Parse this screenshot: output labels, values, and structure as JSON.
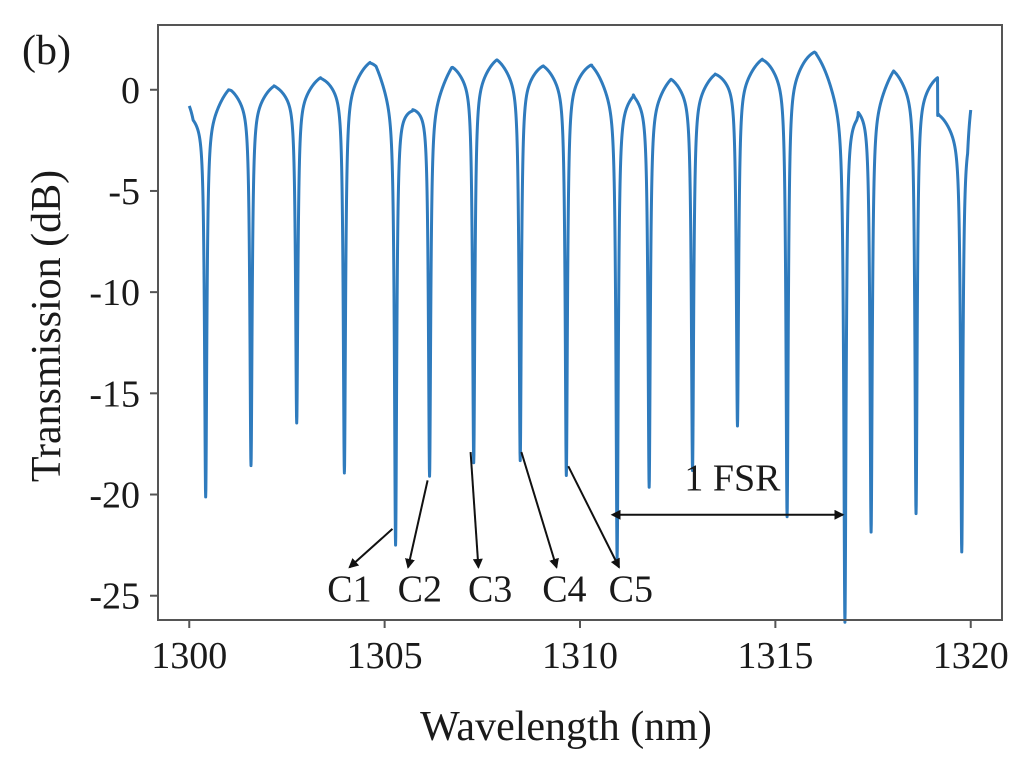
{
  "chart_data": {
    "type": "line",
    "panel_label": "(b)",
    "xlabel": "Wavelength (nm)",
    "ylabel": "Transmission (dB)",
    "xlim": [
      1299.2,
      1320.8
    ],
    "ylim": [
      -26.2,
      3.2
    ],
    "xticks": [
      1300,
      1305,
      1310,
      1315,
      1320
    ],
    "xtick_labels": [
      "1300",
      "1305",
      "1310",
      "1315",
      "1320"
    ],
    "yticks": [
      0,
      -5,
      -10,
      -15,
      -20,
      -25
    ],
    "ytick_labels": [
      "0",
      "-5",
      "-10",
      "-15",
      "-20",
      "-25"
    ],
    "grid": false,
    "series_color": "#2f7bbd",
    "series": [
      {
        "start": [
          1300.0,
          -0.8
        ],
        "end": [
          1320.0,
          -1.0
        ],
        "dips": [
          {
            "x": 1300.42,
            "y": -19.0
          },
          {
            "x": 1301.58,
            "y": -17.5
          },
          {
            "x": 1302.75,
            "y": -15.5
          },
          {
            "x": 1303.97,
            "y": -17.8
          },
          {
            "x": 1305.28,
            "y": -21.2
          },
          {
            "x": 1306.15,
            "y": -18.0
          },
          {
            "x": 1307.28,
            "y": -17.3
          },
          {
            "x": 1308.47,
            "y": -17.2
          },
          {
            "x": 1309.65,
            "y": -17.9
          },
          {
            "x": 1310.95,
            "y": -21.8
          },
          {
            "x": 1311.77,
            "y": -18.5
          },
          {
            "x": 1312.88,
            "y": -17.7
          },
          {
            "x": 1314.03,
            "y": -15.6
          },
          {
            "x": 1315.3,
            "y": -19.8
          },
          {
            "x": 1316.78,
            "y": -24.8
          },
          {
            "x": 1317.45,
            "y": -20.6
          },
          {
            "x": 1318.6,
            "y": -19.7
          },
          {
            "x": 1319.77,
            "y": -21.6
          }
        ],
        "peaks": [
          {
            "x": 1299.97,
            "y": -0.8
          },
          {
            "x": 1301.08,
            "y": 0.3
          },
          {
            "x": 1302.25,
            "y": 0.4
          },
          {
            "x": 1303.45,
            "y": 0.8
          },
          {
            "x": 1304.78,
            "y": 1.6
          },
          {
            "x": 1305.72,
            "y": -0.5
          },
          {
            "x": 1306.74,
            "y": 1.4
          },
          {
            "x": 1307.86,
            "y": 1.7
          },
          {
            "x": 1309.06,
            "y": 1.4
          },
          {
            "x": 1310.28,
            "y": 1.4
          },
          {
            "x": 1311.4,
            "y": 0.3
          },
          {
            "x": 1312.35,
            "y": 0.8
          },
          {
            "x": 1313.48,
            "y": 1.0
          },
          {
            "x": 1314.72,
            "y": 1.7
          },
          {
            "x": 1316.0,
            "y": 2.0
          },
          {
            "x": 1317.08,
            "y": -0.3
          },
          {
            "x": 1318.02,
            "y": 1.2
          },
          {
            "x": 1319.15,
            "y": 0.9
          }
        ]
      }
    ],
    "annotations": [
      {
        "text": "C1",
        "label_at": [
          1304.1,
          -24.6
        ],
        "arrow_from": [
          1305.2,
          -21.7
        ],
        "arrow_to": [
          1304.1,
          -23.6
        ]
      },
      {
        "text": "C2",
        "label_at": [
          1305.9,
          -24.6
        ],
        "arrow_from": [
          1306.1,
          -19.3
        ],
        "arrow_to": [
          1305.6,
          -23.6
        ]
      },
      {
        "text": "C3",
        "label_at": [
          1307.7,
          -24.6
        ],
        "arrow_from": [
          1307.2,
          -17.9
        ],
        "arrow_to": [
          1307.4,
          -23.6
        ]
      },
      {
        "text": "C4",
        "label_at": [
          1309.6,
          -24.6
        ],
        "arrow_from": [
          1308.5,
          -17.9
        ],
        "arrow_to": [
          1309.4,
          -23.6
        ]
      },
      {
        "text": "C5",
        "label_at": [
          1311.3,
          -24.6
        ],
        "arrow_from": [
          1309.7,
          -18.6
        ],
        "arrow_to": [
          1311.0,
          -23.6
        ]
      }
    ],
    "fsr": {
      "text": "1 FSR",
      "from": 1310.95,
      "to": 1316.78,
      "y": -21.0,
      "label_at": [
        1313.9,
        -19.8
      ]
    }
  }
}
